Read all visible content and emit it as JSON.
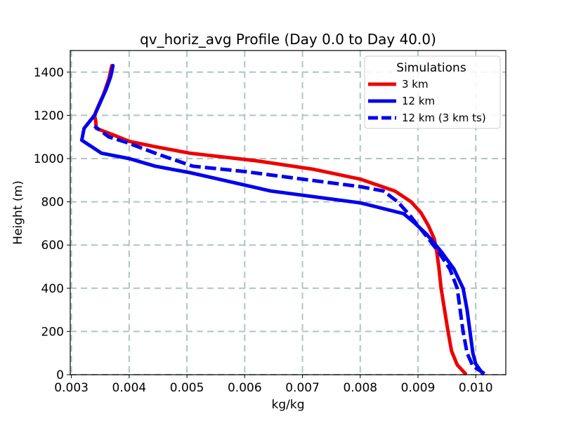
{
  "chart_data": {
    "type": "line",
    "title": "qv_horiz_avg Profile (Day 0.0 to Day 40.0)",
    "xlabel": "kg/kg",
    "ylabel": "Height (m)",
    "xlim": [
      0.00298,
      0.01052
    ],
    "ylim": [
      0,
      1500
    ],
    "xticks": [
      0.003,
      0.004,
      0.005,
      0.006,
      0.007,
      0.008,
      0.009,
      0.01
    ],
    "xtick_labels": [
      "0.003",
      "0.004",
      "0.005",
      "0.006",
      "0.007",
      "0.008",
      "0.009",
      "0.010"
    ],
    "yticks": [
      0,
      200,
      400,
      600,
      800,
      1000,
      1200,
      1400
    ],
    "ytick_labels": [
      "0",
      "200",
      "400",
      "600",
      "800",
      "1000",
      "1200",
      "1400"
    ],
    "grid": true,
    "legend": {
      "title": "Simulations",
      "position": "top-right"
    },
    "series": [
      {
        "name": "3 km",
        "color": "#ee0000",
        "dash": "solid",
        "points": [
          [
            0.00982,
            5
          ],
          [
            0.00968,
            45
          ],
          [
            0.00958,
            110
          ],
          [
            0.00952,
            200
          ],
          [
            0.00946,
            300
          ],
          [
            0.0094,
            400
          ],
          [
            0.00936,
            500
          ],
          [
            0.00932,
            580
          ],
          [
            0.00928,
            630
          ],
          [
            0.00918,
            690
          ],
          [
            0.00905,
            750
          ],
          [
            0.00888,
            800
          ],
          [
            0.0086,
            850
          ],
          [
            0.008,
            905
          ],
          [
            0.0072,
            950
          ],
          [
            0.0062,
            990
          ],
          [
            0.00505,
            1025
          ],
          [
            0.00445,
            1055
          ],
          [
            0.004,
            1080
          ],
          [
            0.00372,
            1110
          ],
          [
            0.00343,
            1140
          ],
          [
            0.00342,
            1175
          ],
          [
            0.0034,
            1200
          ],
          [
            0.00346,
            1240
          ],
          [
            0.00356,
            1300
          ],
          [
            0.00365,
            1370
          ],
          [
            0.0037,
            1430
          ]
        ]
      },
      {
        "name": "12 km",
        "color": "#0000ee",
        "dash": "solid",
        "points": [
          [
            0.01012,
            5
          ],
          [
            0.01,
            50
          ],
          [
            0.00995,
            100
          ],
          [
            0.0099,
            200
          ],
          [
            0.00985,
            300
          ],
          [
            0.00978,
            400
          ],
          [
            0.00962,
            490
          ],
          [
            0.0094,
            570
          ],
          [
            0.00915,
            650
          ],
          [
            0.00895,
            700
          ],
          [
            0.00875,
            745
          ],
          [
            0.008,
            795
          ],
          [
            0.00645,
            850
          ],
          [
            0.00555,
            905
          ],
          [
            0.00505,
            935
          ],
          [
            0.00445,
            965
          ],
          [
            0.004,
            1000
          ],
          [
            0.00352,
            1025
          ],
          [
            0.00318,
            1085
          ],
          [
            0.00322,
            1140
          ],
          [
            0.0034,
            1200
          ],
          [
            0.0035,
            1260
          ],
          [
            0.0036,
            1320
          ],
          [
            0.00368,
            1380
          ],
          [
            0.00372,
            1430
          ]
        ]
      },
      {
        "name": "12 km (3 km ts)",
        "color": "#0000ee",
        "dash": "dashed",
        "points": [
          [
            0.01015,
            5
          ],
          [
            0.00995,
            40
          ],
          [
            0.00985,
            100
          ],
          [
            0.00978,
            200
          ],
          [
            0.00973,
            300
          ],
          [
            0.00968,
            400
          ],
          [
            0.00955,
            490
          ],
          [
            0.00935,
            570
          ],
          [
            0.00918,
            630
          ],
          [
            0.009,
            690
          ],
          [
            0.00885,
            740
          ],
          [
            0.00865,
            800
          ],
          [
            0.0084,
            850
          ],
          [
            0.008,
            870
          ],
          [
            0.007,
            905
          ],
          [
            0.006,
            940
          ],
          [
            0.0051,
            965
          ],
          [
            0.0045,
            1020
          ],
          [
            0.00395,
            1075
          ],
          [
            0.00365,
            1100
          ],
          [
            0.0034,
            1150
          ]
        ]
      }
    ]
  }
}
